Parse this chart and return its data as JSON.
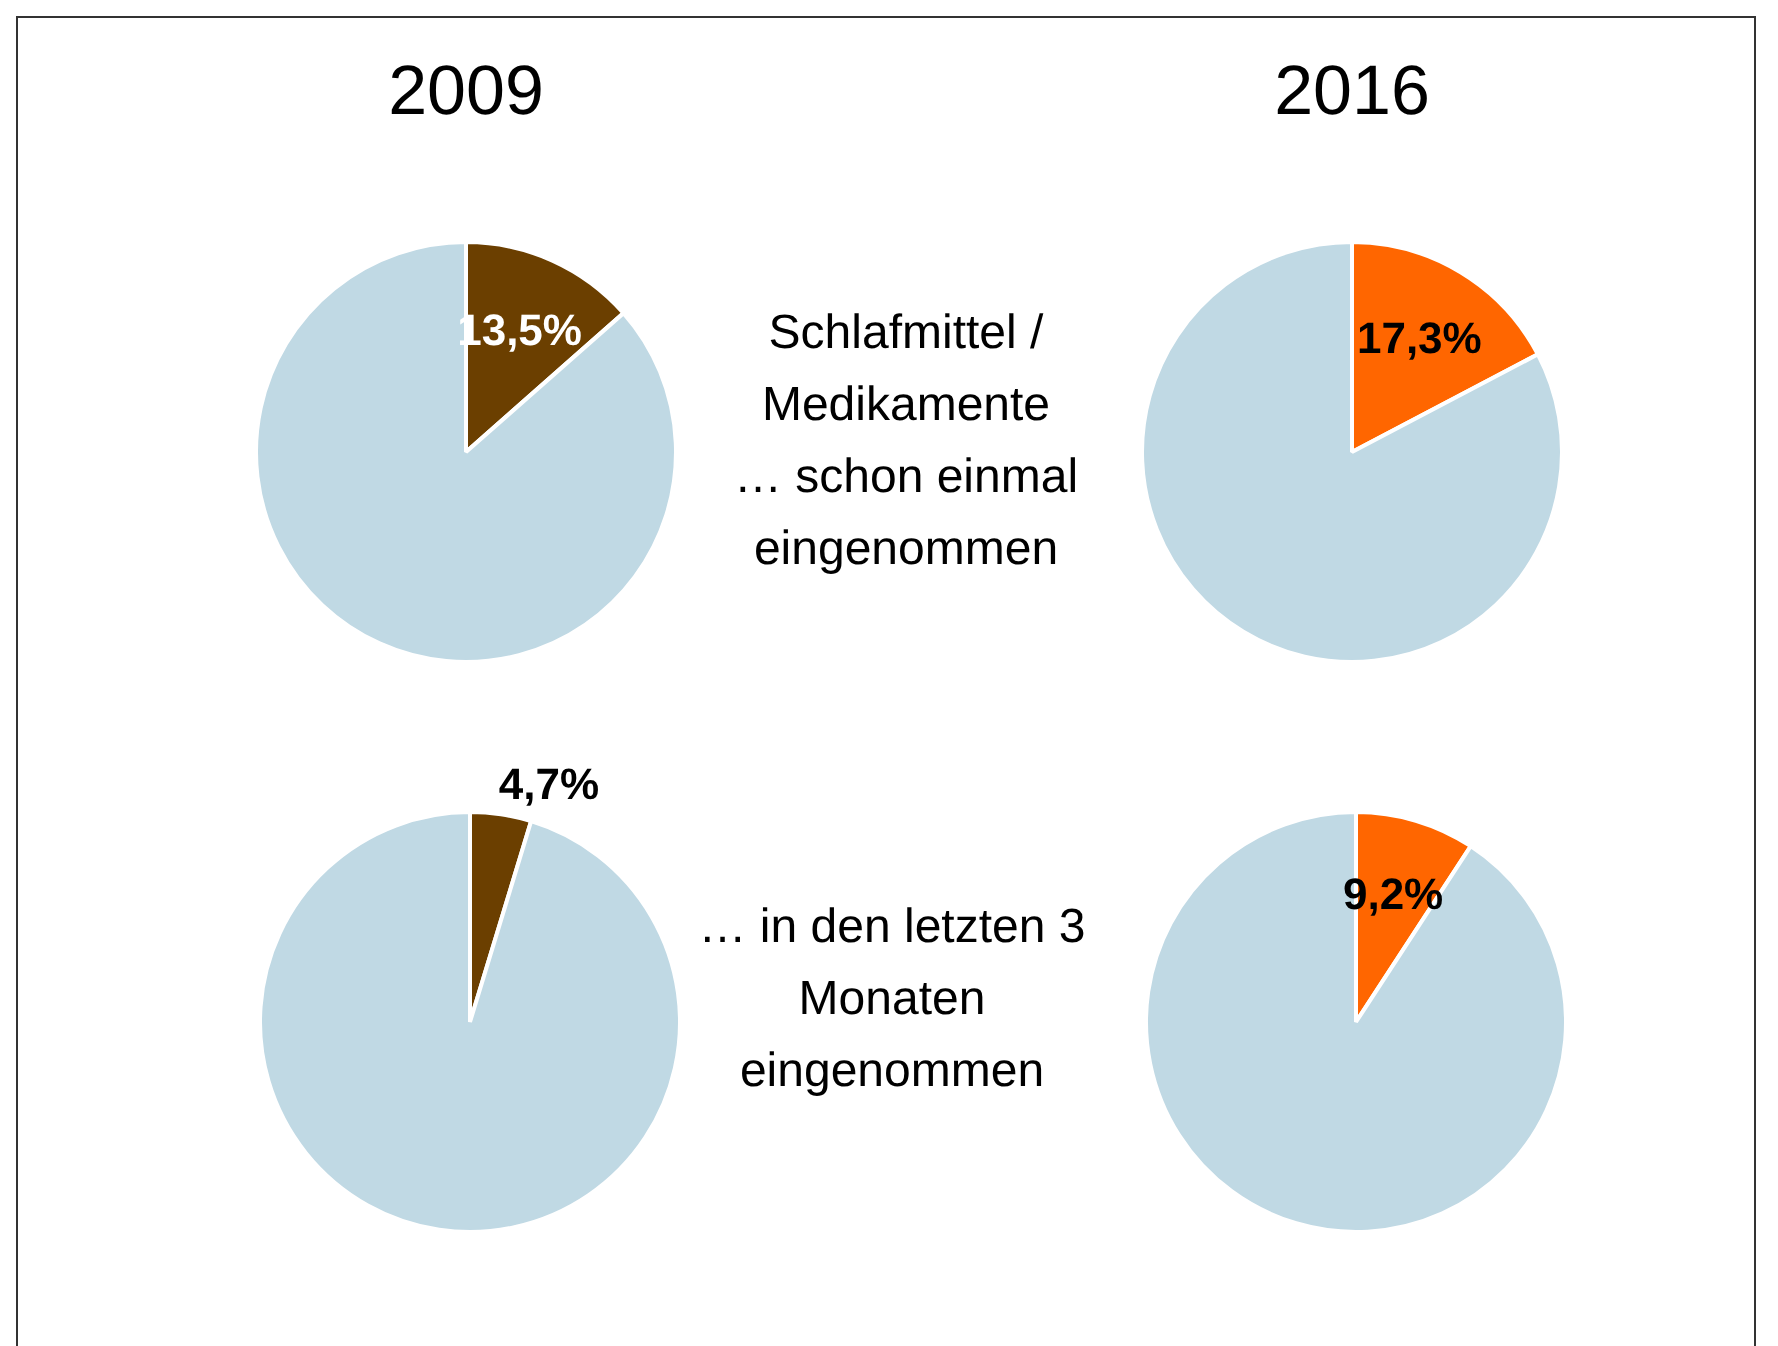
{
  "chart_data": [
    {
      "type": "pie",
      "title": "2009",
      "categories": [
        null,
        null
      ],
      "values": [
        13.5,
        86.5
      ],
      "colors": [
        "#6b3f00",
        "#c0d9e4"
      ],
      "value_labels": [
        "13,5%",
        null
      ],
      "annotations": [
        "Schlafmittel /\nMedikamente\n… schon einmal\neingenommen"
      ]
    },
    {
      "type": "pie",
      "title": "2016",
      "categories": [
        null,
        null
      ],
      "values": [
        17.3,
        82.7
      ],
      "colors": [
        "#ff6600",
        "#c0d9e4"
      ],
      "value_labels": [
        "17,3%",
        null
      ]
    },
    {
      "type": "pie",
      "categories": [
        null,
        null
      ],
      "values": [
        4.7,
        95.3
      ],
      "colors": [
        "#6b3f00",
        "#c0d9e4"
      ],
      "value_labels": [
        "4,7%",
        null
      ],
      "annotations": [
        "… in den letzten 3\nMonaten\neingenommen"
      ]
    },
    {
      "type": "pie",
      "categories": [
        null,
        null
      ],
      "values": [
        9.2,
        90.8
      ],
      "colors": [
        "#ff6600",
        "#c0d9e4"
      ],
      "value_labels": [
        "9,2%",
        null
      ]
    }
  ]
}
